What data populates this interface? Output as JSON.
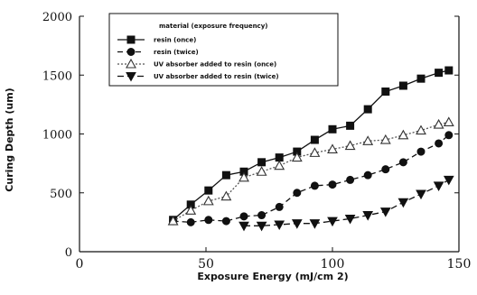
{
  "chart_data": {
    "type": "line",
    "xlabel": "Exposure Energy (mJ/cm 2)",
    "ylabel": "Curing Depth (um)",
    "xlim": [
      0,
      150
    ],
    "ylim": [
      0,
      2000
    ],
    "xticks": [
      "0",
      "50",
      "100",
      "150"
    ],
    "yticks": [
      "0",
      "500",
      "1000",
      "1500",
      "2000"
    ],
    "grid": false,
    "legend": {
      "title": "material (exposure frequency)",
      "position": "top-center",
      "entries": [
        "resin (once)",
        "resin (twice)",
        "UV absorber added to resin (once)",
        "UV absorber added to resin (twice)"
      ]
    },
    "series": [
      {
        "name": "resin (once)",
        "marker": "square-filled",
        "line": "solid",
        "x": [
          37,
          44,
          51,
          58,
          65,
          72,
          79,
          86,
          93,
          100,
          107,
          114,
          121,
          128,
          135,
          142,
          146
        ],
        "y": [
          270,
          400,
          520,
          650,
          680,
          760,
          800,
          850,
          950,
          1040,
          1070,
          1210,
          1360,
          1410,
          1470,
          1520,
          1540
        ]
      },
      {
        "name": "resin (twice)",
        "marker": "circle-filled",
        "line": "dashed",
        "x": [
          37,
          44,
          51,
          58,
          65,
          72,
          79,
          86,
          93,
          100,
          107,
          114,
          121,
          128,
          135,
          142,
          146
        ],
        "y": [
          260,
          250,
          270,
          260,
          300,
          310,
          380,
          500,
          560,
          570,
          610,
          650,
          700,
          760,
          850,
          920,
          990
        ]
      },
      {
        "name": "UV absorber added to resin (once)",
        "marker": "triangle-up-open",
        "line": "dotted",
        "x": [
          37,
          44,
          51,
          58,
          65,
          72,
          79,
          86,
          93,
          100,
          107,
          114,
          121,
          128,
          135,
          142,
          146
        ],
        "y": [
          260,
          350,
          430,
          470,
          630,
          680,
          730,
          800,
          840,
          870,
          900,
          940,
          950,
          990,
          1030,
          1080,
          1100
        ]
      },
      {
        "name": "UV absorber added to resin (twice)",
        "marker": "triangle-down-filled",
        "line": "dashed",
        "x": [
          65,
          72,
          79,
          86,
          93,
          100,
          107,
          114,
          121,
          128,
          135,
          142,
          146
        ],
        "y": [
          220,
          220,
          230,
          240,
          240,
          260,
          280,
          310,
          340,
          420,
          490,
          560,
          610
        ]
      }
    ]
  }
}
